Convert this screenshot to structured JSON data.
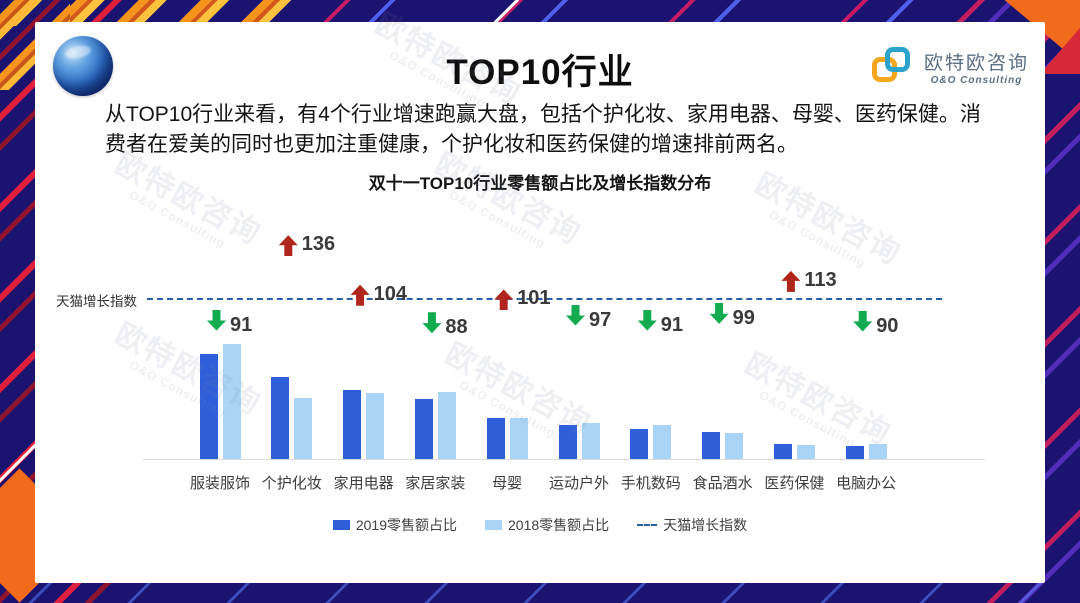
{
  "slide": {
    "title": "TOP10行业",
    "intro": "从TOP10行业来看，有4个行业增速跑赢大盘，包括个护化妆、家用电器、母婴、医药保健。消费者在爱美的同时也更加注重健康，个护化妆和医药保健的增速排前两名。",
    "watermark": "欧特欧咨询"
  },
  "logo": {
    "company": "欧特欧咨询",
    "tagline": "O&O Consulting"
  },
  "icons": {
    "globe-icon": "blue-3d-sphere",
    "logo-icon": "two-overlapping-rounded-squares orange+teal",
    "up-arrow-icon": "⬆ solid block arrow",
    "down-arrow-icon": "⬇ solid block arrow"
  },
  "colors": {
    "frame_navy": "#1a1370",
    "frame_orange": "#f26a1b",
    "frame_red": "#e01f3d",
    "bar_2019": "#2f5fd8",
    "bar_2018": "#a9d4f5",
    "growth_line": "#2b5ca8",
    "arrow_up": "#b0261c",
    "arrow_down": "#12ab4f"
  },
  "chart_data": {
    "type": "bar",
    "title": "双十一TOP10行业零售额占比及增长指数分布",
    "categories": [
      "服装服饰",
      "个护化妆",
      "家用电器",
      "家居家装",
      "母婴",
      "运动户外",
      "手机数码",
      "食品酒水",
      "医药保健",
      "电脑办公"
    ],
    "series": [
      {
        "name": "2019零售额占比",
        "color": "#2f5fd8",
        "values": [
          23.0,
          17.9,
          15.1,
          13.2,
          9.0,
          7.5,
          6.6,
          5.9,
          3.2,
          2.8
        ]
      },
      {
        "name": "2018零售额占比",
        "color": "#a9d4f5",
        "values": [
          25.2,
          13.4,
          14.5,
          14.7,
          9.1,
          7.9,
          7.4,
          5.7,
          3.0,
          3.2
        ]
      }
    ],
    "growth_index": {
      "name": "天猫增长指数",
      "baseline": 100,
      "values": [
        91,
        136,
        104,
        88,
        101,
        97,
        91,
        99,
        113,
        90
      ],
      "up_color": "#b0261c",
      "down_color": "#12ab4f",
      "line_color": "#2b5ca8"
    },
    "legend": [
      "2019零售额占比",
      "2018零售额占比",
      "天猫增长指数"
    ],
    "legend_position": "bottom",
    "grid": false,
    "xlabel": "",
    "ylabel": "",
    "ylim": [
      0,
      26
    ],
    "value_unit": "% (share, y-axis unlabeled — values estimated from bar heights)"
  }
}
